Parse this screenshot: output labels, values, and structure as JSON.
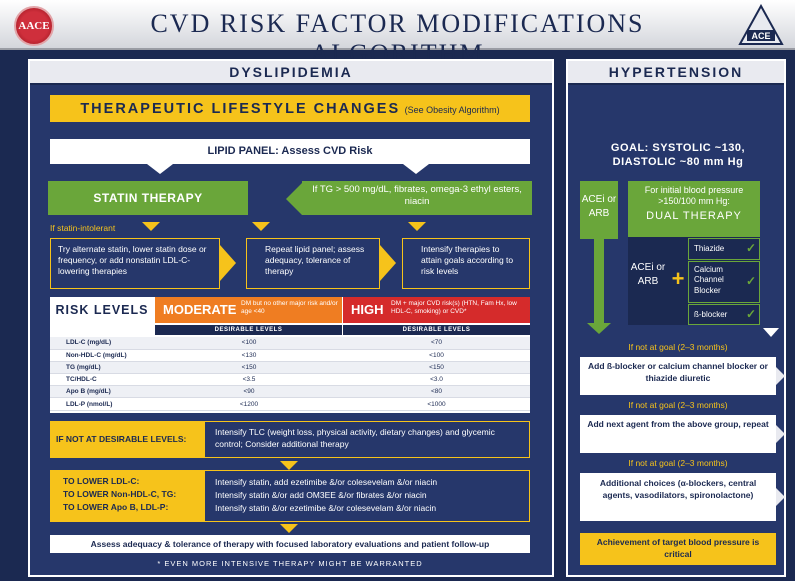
{
  "header": {
    "title": "CVD RISK FACTOR MODIFICATIONS ALGORITHM",
    "logo_left": "AACE",
    "logo_right": "ACE"
  },
  "dys": {
    "heading": "DYSLIPIDEMIA",
    "tlc": "THERAPEUTIC LIFESTYLE CHANGES",
    "tlc_note": "(See Obesity Algorithm)",
    "lipid_panel": "LIPID PANEL: Assess CVD Risk",
    "statin": "STATIN THERAPY",
    "tg_box": "If TG > 500 mg/dL, fibrates, omega-3 ethyl esters, niacin",
    "intolerant": "If statin-intolerant",
    "box_alt": "Try alternate statin, lower statin dose or frequency, or add nonstatin LDL-C- lowering therapies",
    "box_repeat": "Repeat lipid panel; assess adequacy, tolerance of therapy",
    "box_intensify": "Intensify therapies to attain goals according to risk levels",
    "risk": {
      "heading": "RISK LEVELS",
      "moderate": "MODERATE",
      "moderate_note": "DM but no other major risk and/or age <40",
      "high": "HIGH",
      "high_note": "DM + major CVD risk(s) (HTN, Fam Hx, low HDL-C, smoking) or CVD*",
      "desirable": "DESIRABLE LEVELS",
      "rows": [
        {
          "label": "LDL-C (mg/dL)",
          "moderate": "<100",
          "high": "<70"
        },
        {
          "label": "Non-HDL-C (mg/dL)",
          "moderate": "<130",
          "high": "<100"
        },
        {
          "label": "TG (mg/dL)",
          "moderate": "<150",
          "high": "<150"
        },
        {
          "label": "TC/HDL-C",
          "moderate": "<3.5",
          "high": "<3.0"
        },
        {
          "label": "Apo B (mg/dL)",
          "moderate": "<90",
          "high": "<80"
        },
        {
          "label": "LDL-P (nmol/L)",
          "moderate": "<1200",
          "high": "<1000"
        }
      ]
    },
    "not_desirable_label": "IF NOT AT DESIRABLE LEVELS:",
    "not_desirable_text": "Intensify TLC (weight loss, physical activity, dietary changes) and glycemic control; Consider additional therapy",
    "lower": [
      {
        "label": "TO LOWER LDL-C:",
        "text": "Intensify statin, add ezetimibe &/or colesevelam &/or niacin"
      },
      {
        "label": "TO LOWER Non-HDL-C, TG:",
        "text": "Intensify statin &/or add OM3EE &/or fibrates &/or niacin"
      },
      {
        "label": "TO LOWER Apo B, LDL-P:",
        "text": "Intensify statin &/or ezetimibe &/or colesevelam &/or niacin"
      }
    ],
    "assess": "Assess adequacy & tolerance of therapy with focused laboratory evaluations and patient follow-up",
    "footnote": "* EVEN MORE INTENSIVE THERAPY MIGHT BE WARRANTED"
  },
  "htn": {
    "heading": "HYPERTENSION",
    "goal": "GOAL: SYSTOLIC ~130, DIASTOLIC ~80 mm Hg",
    "acei_arb": "ACEi or ARB",
    "initial": "For initial blood pressure >150/100 mm Hg:",
    "dual": "DUAL THERAPY",
    "acei_arb_2": "ACEi or ARB",
    "plus": "+",
    "thiazide": "Thiazide",
    "ccb": "Calcium Channel Blocker",
    "bblocker": "ß-blocker",
    "check": "✓",
    "not_goal": "If not at goal (2–3 months)",
    "add_bblocker": "Add ß-blocker or calcium channel blocker or thiazide diuretic",
    "next_agent": "Add next agent from the above group, repeat",
    "additional": "Additional choices (α-blockers, central agents, vasodilators, spironolactone)",
    "achievement": "Achievement of target blood pressure is critical"
  },
  "colors": {
    "navy": "#1b2951",
    "panel": "#26376b",
    "yellow": "#f6c31b",
    "green": "#6aa63a",
    "orange": "#ef7d22",
    "red": "#d52b2b"
  }
}
